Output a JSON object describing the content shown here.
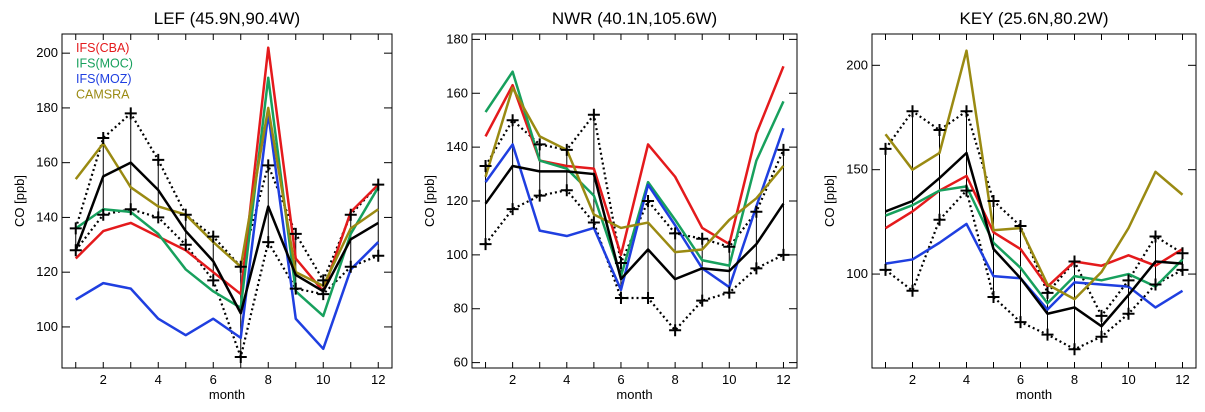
{
  "chart_data": [
    {
      "type": "line",
      "title": "LEF (45.9N,90.4W)",
      "xlabel": "month",
      "ylabel": "CO [ppb]",
      "x": [
        1,
        2,
        3,
        4,
        5,
        6,
        7,
        8,
        9,
        10,
        11,
        12
      ],
      "xlim": [
        0.5,
        12.5
      ],
      "ylim": [
        85,
        207
      ],
      "yticks": [
        100,
        120,
        140,
        160,
        180,
        200
      ],
      "xticks": [
        2,
        4,
        6,
        8,
        10,
        12
      ],
      "legend": {
        "placement": "top-left",
        "entries": [
          {
            "name": "IFS(CBA)",
            "color": "#e41a1c"
          },
          {
            "name": "IFS(MOC)",
            "color": "#17a05d"
          },
          {
            "name": "IFS(MOZ)",
            "color": "#1f3fe0"
          },
          {
            "name": "CAMSRA",
            "color": "#9a8a12"
          }
        ]
      },
      "series": [
        {
          "name": "IFS(CBA)",
          "color": "#e41a1c",
          "values": [
            125,
            135,
            138,
            133,
            128,
            120,
            112,
            202,
            125,
            113,
            142,
            152
          ]
        },
        {
          "name": "IFS(MOC)",
          "color": "#17a05d",
          "values": [
            136,
            143,
            142,
            134,
            121,
            113,
            107,
            191,
            113,
            104,
            134,
            151
          ]
        },
        {
          "name": "IFS(MOZ)",
          "color": "#1f3fe0",
          "values": [
            110,
            116,
            114,
            103,
            97,
            103,
            96,
            178,
            103,
            92,
            121,
            131
          ]
        },
        {
          "name": "CAMSRA",
          "color": "#9a8a12",
          "values": [
            154,
            167,
            151,
            144,
            141,
            131,
            122,
            180,
            120,
            115,
            136,
            143
          ]
        }
      ],
      "obs": {
        "mean": [
          128,
          155,
          160,
          150,
          135,
          124,
          105,
          144,
          119,
          113,
          132,
          138
        ],
        "high": [
          136,
          169,
          178,
          161,
          141,
          133,
          122,
          159,
          134,
          117,
          141,
          152
        ],
        "low": [
          128,
          141,
          143,
          140,
          130,
          117,
          89,
          131,
          114,
          112,
          122,
          126
        ]
      }
    },
    {
      "type": "line",
      "title": "NWR (40.1N,105.6W)",
      "xlabel": "month",
      "ylabel": "CO [ppb]",
      "x": [
        1,
        2,
        3,
        4,
        5,
        6,
        7,
        8,
        9,
        10,
        11,
        12
      ],
      "xlim": [
        0.5,
        12.5
      ],
      "ylim": [
        58,
        182
      ],
      "yticks": [
        60,
        80,
        100,
        120,
        140,
        160,
        180
      ],
      "xticks": [
        2,
        4,
        6,
        8,
        10,
        12
      ],
      "series": [
        {
          "name": "IFS(CBA)",
          "color": "#e41a1c",
          "values": [
            144,
            163,
            135,
            133,
            132,
            100,
            141,
            129,
            110,
            104,
            145,
            170
          ]
        },
        {
          "name": "IFS(MOC)",
          "color": "#17a05d",
          "values": [
            153,
            168,
            135,
            132,
            122,
            92,
            127,
            113,
            98,
            96,
            135,
            157
          ]
        },
        {
          "name": "IFS(MOZ)",
          "color": "#1f3fe0",
          "values": [
            127,
            141,
            109,
            107,
            110,
            87,
            126,
            111,
            95,
            88,
            118,
            147
          ]
        },
        {
          "name": "CAMSRA",
          "color": "#9a8a12",
          "values": [
            129,
            162,
            144,
            139,
            115,
            110,
            112,
            101,
            102,
            113,
            121,
            133
          ]
        }
      ],
      "obs": {
        "mean": [
          119,
          133,
          131,
          131,
          130,
          91,
          102,
          91,
          95,
          94,
          104,
          119
        ],
        "high": [
          133,
          150,
          141,
          139,
          152,
          97,
          120,
          108,
          106,
          103,
          116,
          139
        ],
        "low": [
          104,
          117,
          122,
          124,
          112,
          84,
          84,
          72,
          83,
          86,
          95,
          100
        ]
      }
    },
    {
      "type": "line",
      "title": "KEY (25.6N,80.2W)",
      "xlabel": "month",
      "ylabel": "CO [ppb]",
      "x": [
        1,
        2,
        3,
        4,
        5,
        6,
        7,
        8,
        9,
        10,
        11,
        12
      ],
      "xlim": [
        0.5,
        12.5
      ],
      "ylim": [
        55,
        215
      ],
      "yticks": [
        100,
        150,
        200
      ],
      "xticks": [
        2,
        4,
        6,
        8,
        10,
        12
      ],
      "series": [
        {
          "name": "IFS(CBA)",
          "color": "#e41a1c",
          "values": [
            122,
            130,
            140,
            147,
            120,
            112,
            94,
            106,
            104,
            109,
            104,
            112
          ]
        },
        {
          "name": "IFS(MOC)",
          "color": "#17a05d",
          "values": [
            128,
            133,
            140,
            142,
            115,
            103,
            86,
            99,
            97,
            100,
            94,
            107
          ]
        },
        {
          "name": "IFS(MOZ)",
          "color": "#1f3fe0",
          "values": [
            105,
            107,
            115,
            124,
            99,
            98,
            83,
            96,
            95,
            94,
            84,
            92
          ]
        },
        {
          "name": "CAMSRA",
          "color": "#9a8a12",
          "values": [
            167,
            150,
            158,
            207,
            121,
            122,
            95,
            88,
            101,
            122,
            149,
            138
          ]
        }
      ],
      "obs": {
        "mean": [
          130,
          135,
          146,
          158,
          112,
          98,
          81,
          84,
          75,
          90,
          106,
          105
        ],
        "high": [
          160,
          178,
          169,
          178,
          135,
          123,
          91,
          106,
          80,
          97,
          118,
          110
        ],
        "low": [
          102,
          92,
          126,
          140,
          89,
          77,
          71,
          64,
          70,
          81,
          95,
          102
        ]
      }
    }
  ]
}
